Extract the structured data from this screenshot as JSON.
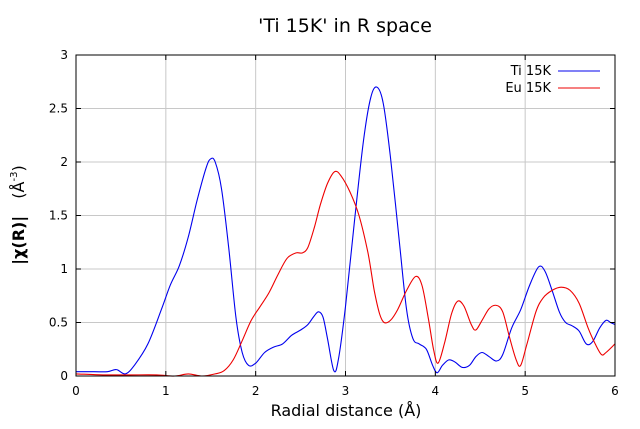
{
  "chart_data": {
    "type": "line",
    "title": "'Ti 15K' in R space",
    "xlabel": "Radial distance    (Å)",
    "ylabel_main": "|χ(R)|",
    "ylabel_unit": "(Å",
    "ylabel_unit_exp": "-3",
    "ylabel_unit_close": ")",
    "xlim": [
      0,
      6
    ],
    "ylim": [
      0,
      3
    ],
    "xticks": [
      "0",
      "1",
      "2",
      "3",
      "4",
      "5",
      "6"
    ],
    "yticks": [
      "0",
      "0.5",
      "1",
      "1.5",
      "2",
      "2.5",
      "3"
    ],
    "grid": true,
    "legend_position": "top-right",
    "series": [
      {
        "name": "Ti 15K",
        "color": "#0000ee",
        "points": [
          [
            0.0,
            0.04
          ],
          [
            0.2,
            0.04
          ],
          [
            0.35,
            0.04
          ],
          [
            0.45,
            0.06
          ],
          [
            0.55,
            0.02
          ],
          [
            0.65,
            0.1
          ],
          [
            0.8,
            0.3
          ],
          [
            0.95,
            0.62
          ],
          [
            1.05,
            0.85
          ],
          [
            1.15,
            1.03
          ],
          [
            1.25,
            1.3
          ],
          [
            1.35,
            1.65
          ],
          [
            1.45,
            1.95
          ],
          [
            1.5,
            2.03
          ],
          [
            1.55,
            2.0
          ],
          [
            1.62,
            1.75
          ],
          [
            1.7,
            1.2
          ],
          [
            1.78,
            0.55
          ],
          [
            1.85,
            0.22
          ],
          [
            1.92,
            0.1
          ],
          [
            2.0,
            0.12
          ],
          [
            2.1,
            0.22
          ],
          [
            2.2,
            0.27
          ],
          [
            2.3,
            0.3
          ],
          [
            2.4,
            0.38
          ],
          [
            2.5,
            0.43
          ],
          [
            2.58,
            0.48
          ],
          [
            2.65,
            0.56
          ],
          [
            2.7,
            0.6
          ],
          [
            2.75,
            0.55
          ],
          [
            2.8,
            0.35
          ],
          [
            2.87,
            0.05
          ],
          [
            2.92,
            0.15
          ],
          [
            3.0,
            0.65
          ],
          [
            3.1,
            1.45
          ],
          [
            3.2,
            2.2
          ],
          [
            3.28,
            2.6
          ],
          [
            3.35,
            2.7
          ],
          [
            3.42,
            2.55
          ],
          [
            3.5,
            2.05
          ],
          [
            3.6,
            1.25
          ],
          [
            3.68,
            0.62
          ],
          [
            3.75,
            0.35
          ],
          [
            3.82,
            0.3
          ],
          [
            3.9,
            0.25
          ],
          [
            3.97,
            0.1
          ],
          [
            4.02,
            0.03
          ],
          [
            4.08,
            0.1
          ],
          [
            4.15,
            0.15
          ],
          [
            4.22,
            0.13
          ],
          [
            4.3,
            0.08
          ],
          [
            4.38,
            0.1
          ],
          [
            4.45,
            0.18
          ],
          [
            4.52,
            0.22
          ],
          [
            4.6,
            0.18
          ],
          [
            4.68,
            0.14
          ],
          [
            4.75,
            0.2
          ],
          [
            4.85,
            0.45
          ],
          [
            4.95,
            0.62
          ],
          [
            5.05,
            0.85
          ],
          [
            5.15,
            1.02
          ],
          [
            5.22,
            0.98
          ],
          [
            5.3,
            0.8
          ],
          [
            5.38,
            0.6
          ],
          [
            5.45,
            0.5
          ],
          [
            5.52,
            0.47
          ],
          [
            5.6,
            0.42
          ],
          [
            5.68,
            0.3
          ],
          [
            5.75,
            0.32
          ],
          [
            5.83,
            0.45
          ],
          [
            5.9,
            0.52
          ],
          [
            5.95,
            0.5
          ],
          [
            6.0,
            0.48
          ]
        ]
      },
      {
        "name": "Eu 15K",
        "color": "#ee0000",
        "points": [
          [
            0.0,
            0.02
          ],
          [
            0.3,
            0.01
          ],
          [
            0.6,
            0.01
          ],
          [
            0.9,
            0.01
          ],
          [
            1.1,
            0.0
          ],
          [
            1.25,
            0.02
          ],
          [
            1.4,
            0.0
          ],
          [
            1.55,
            0.02
          ],
          [
            1.65,
            0.05
          ],
          [
            1.75,
            0.15
          ],
          [
            1.85,
            0.33
          ],
          [
            1.95,
            0.52
          ],
          [
            2.05,
            0.65
          ],
          [
            2.15,
            0.78
          ],
          [
            2.25,
            0.95
          ],
          [
            2.35,
            1.1
          ],
          [
            2.45,
            1.15
          ],
          [
            2.52,
            1.15
          ],
          [
            2.58,
            1.2
          ],
          [
            2.65,
            1.38
          ],
          [
            2.72,
            1.6
          ],
          [
            2.8,
            1.8
          ],
          [
            2.88,
            1.91
          ],
          [
            2.95,
            1.87
          ],
          [
            3.05,
            1.72
          ],
          [
            3.15,
            1.5
          ],
          [
            3.25,
            1.15
          ],
          [
            3.32,
            0.8
          ],
          [
            3.38,
            0.58
          ],
          [
            3.43,
            0.5
          ],
          [
            3.5,
            0.52
          ],
          [
            3.58,
            0.62
          ],
          [
            3.68,
            0.8
          ],
          [
            3.78,
            0.93
          ],
          [
            3.85,
            0.85
          ],
          [
            3.92,
            0.55
          ],
          [
            3.98,
            0.25
          ],
          [
            4.03,
            0.12
          ],
          [
            4.1,
            0.3
          ],
          [
            4.18,
            0.58
          ],
          [
            4.25,
            0.7
          ],
          [
            4.32,
            0.65
          ],
          [
            4.4,
            0.48
          ],
          [
            4.45,
            0.43
          ],
          [
            4.52,
            0.52
          ],
          [
            4.6,
            0.63
          ],
          [
            4.68,
            0.66
          ],
          [
            4.75,
            0.6
          ],
          [
            4.82,
            0.38
          ],
          [
            4.9,
            0.15
          ],
          [
            4.95,
            0.1
          ],
          [
            5.02,
            0.3
          ],
          [
            5.12,
            0.6
          ],
          [
            5.2,
            0.73
          ],
          [
            5.3,
            0.8
          ],
          [
            5.4,
            0.83
          ],
          [
            5.5,
            0.8
          ],
          [
            5.6,
            0.68
          ],
          [
            5.7,
            0.45
          ],
          [
            5.78,
            0.3
          ],
          [
            5.85,
            0.2
          ],
          [
            5.9,
            0.22
          ],
          [
            6.0,
            0.3
          ]
        ]
      }
    ]
  }
}
